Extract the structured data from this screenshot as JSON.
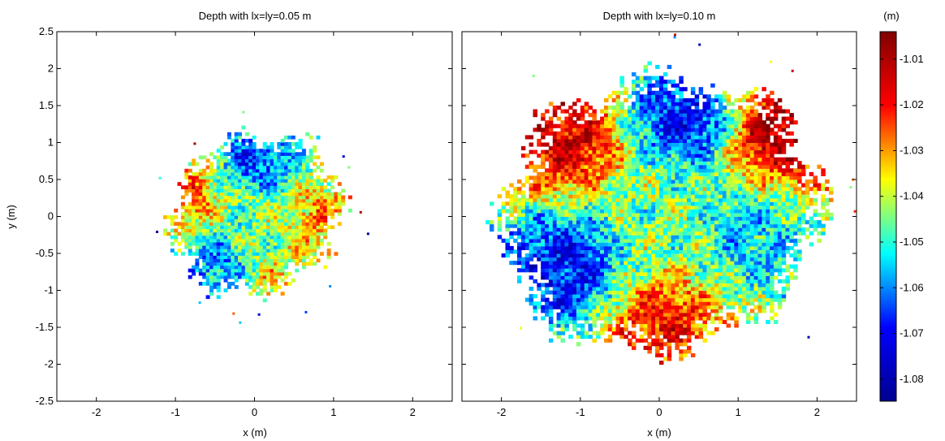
{
  "colors": {
    "colormap_stops": [
      "#00008f",
      "#0000ff",
      "#00ffff",
      "#ffff00",
      "#ff0000",
      "#800000"
    ]
  },
  "colorbar": {
    "unit": "(m)",
    "range": [
      -1.0848,
      -1.004
    ],
    "ticks": [
      -1.01,
      -1.02,
      -1.03,
      -1.04,
      -1.05,
      -1.06,
      -1.07,
      -1.08
    ],
    "tick_labels": [
      "-1.01",
      "-1.02",
      "-1.03",
      "-1.04",
      "-1.05",
      "-1.06",
      "-1.07",
      "-1.08"
    ]
  },
  "chart_data": [
    {
      "type": "heatmap",
      "title": "Depth with lx=ly=0.05 m",
      "xlabel": "x (m)",
      "ylabel": "y (m)",
      "xlim": [
        -2.5,
        2.5
      ],
      "ylim": [
        -2.5,
        2.5
      ],
      "xticks": [
        -2,
        -1,
        0,
        1,
        2
      ],
      "xtick_labels": [
        "-2",
        "-1",
        "0",
        "1",
        "2"
      ],
      "yticks": [
        2.5,
        2,
        1.5,
        1,
        0.5,
        0,
        -0.5,
        -1,
        -1.5,
        -2,
        -2.5
      ],
      "ytick_labels": [
        "2.5",
        "2",
        "1.5",
        "1",
        "0.5",
        "0",
        "-0.5",
        "-1",
        "-1.5",
        "-2",
        "-2.5"
      ],
      "value_range": [
        -1.08,
        -1.005
      ],
      "grid": false,
      "regions": [
        {
          "x": 0.0,
          "y": 0.0,
          "depth": -1.045
        },
        {
          "x": 0.0,
          "y": 0.7,
          "depth": -1.065
        },
        {
          "x": -0.9,
          "y": 0.3,
          "depth": -1.025
        },
        {
          "x": 0.8,
          "y": 0.0,
          "depth": -1.03
        },
        {
          "x": -0.5,
          "y": -0.7,
          "depth": -1.06
        },
        {
          "x": 0.2,
          "y": -1.0,
          "depth": -1.035
        }
      ]
    },
    {
      "type": "heatmap",
      "title": "Depth with lx=ly=0.10 m",
      "xlabel": "x (m)",
      "ylabel": "",
      "xlim": [
        -2.5,
        2.5
      ],
      "ylim": [
        -2.5,
        2.5
      ],
      "xticks": [
        -2,
        -1,
        0,
        1,
        2
      ],
      "xtick_labels": [
        "-2",
        "-1",
        "0",
        "1",
        "2"
      ],
      "yticks": [
        2.5,
        2,
        1.5,
        1,
        0.5,
        0,
        -0.5,
        -1,
        -1.5,
        -2,
        -2.5
      ],
      "ytick_labels": [],
      "value_range": [
        -1.08,
        -1.005
      ],
      "grid": false,
      "regions": [
        {
          "x": 0.0,
          "y": 0.0,
          "depth": -1.045
        },
        {
          "x": 0.3,
          "y": 1.3,
          "depth": -1.07
        },
        {
          "x": -1.2,
          "y": 1.0,
          "depth": -1.015
        },
        {
          "x": 1.5,
          "y": 1.1,
          "depth": -1.01
        },
        {
          "x": -1.2,
          "y": -0.7,
          "depth": -1.07
        },
        {
          "x": 0.0,
          "y": -1.5,
          "depth": -1.02
        },
        {
          "x": 1.2,
          "y": -0.3,
          "depth": -1.055
        }
      ]
    }
  ]
}
